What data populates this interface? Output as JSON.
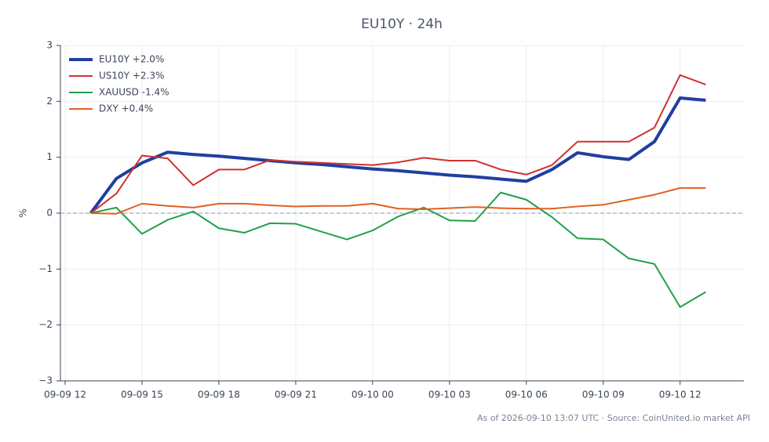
{
  "chart_data": {
    "type": "line",
    "title": "EU10Y · 24h",
    "y_label": "%",
    "footer": "As of 2026-09-10 13:07 UTC · Source: CoinUnited.io market API",
    "x": [
      "09-09 13",
      "09-09 14",
      "09-09 15",
      "09-09 16",
      "09-09 17",
      "09-09 18",
      "09-09 19",
      "09-09 20",
      "09-09 21",
      "09-09 22",
      "09-09 23",
      "09-10 00",
      "09-10 01",
      "09-10 02",
      "09-10 03",
      "09-10 04",
      "09-10 05",
      "09-10 06",
      "09-10 07",
      "09-10 08",
      "09-10 09",
      "09-10 10",
      "09-10 11",
      "09-10 12",
      "09-10 13"
    ],
    "xlim": [
      "09-09 12",
      "09-10 14"
    ],
    "xticks": [
      "09-09 12",
      "09-09 15",
      "09-09 18",
      "09-09 21",
      "09-10 00",
      "09-10 03",
      "09-10 06",
      "09-10 09",
      "09-10 12"
    ],
    "ylim": [
      -3,
      3
    ],
    "yticks": [
      {
        "value": -3,
        "label": "−3"
      },
      {
        "value": -2,
        "label": "−2"
      },
      {
        "value": -1,
        "label": "−1"
      },
      0,
      1,
      2,
      3
    ],
    "grid": true,
    "zero_line": 0,
    "legend": "upper-left",
    "series": [
      {
        "name": "EU10Y +2.0%",
        "color": "#1f3fa0",
        "width": 4,
        "values": [
          0,
          0.62,
          0.9,
          1.09,
          1.05,
          1.02,
          0.98,
          0.94,
          0.9,
          0.87,
          0.83,
          0.79,
          0.76,
          0.72,
          0.68,
          0.65,
          0.61,
          0.57,
          0.78,
          1.08,
          1.01,
          0.96,
          1.28,
          2.06,
          2.02
        ]
      },
      {
        "name": "US10Y +2.3%",
        "color": "#d03030",
        "width": 2,
        "values": [
          0,
          0.35,
          1.03,
          0.98,
          0.5,
          0.78,
          0.78,
          0.95,
          0.92,
          0.9,
          0.88,
          0.86,
          0.91,
          0.99,
          0.94,
          0.94,
          0.78,
          0.69,
          0.86,
          1.28,
          1.28,
          1.28,
          1.53,
          2.47,
          2.3
        ]
      },
      {
        "name": "XAUUSD -1.4%",
        "color": "#22a04a",
        "width": 2,
        "values": [
          0,
          0.1,
          -0.37,
          -0.12,
          0.03,
          -0.27,
          -0.35,
          -0.18,
          -0.19,
          -0.33,
          -0.47,
          -0.31,
          -0.06,
          0.1,
          -0.13,
          -0.14,
          0.37,
          0.24,
          -0.07,
          -0.45,
          -0.47,
          -0.81,
          -0.91,
          -1.68,
          -1.41
        ]
      },
      {
        "name": "DXY +0.4%",
        "color": "#e06020",
        "width": 2,
        "values": [
          0,
          -0.01,
          0.17,
          0.13,
          0.1,
          0.17,
          0.17,
          0.14,
          0.12,
          0.13,
          0.13,
          0.17,
          0.08,
          0.07,
          0.09,
          0.11,
          0.09,
          0.08,
          0.08,
          0.12,
          0.15,
          0.24,
          0.33,
          0.45,
          0.45
        ]
      }
    ]
  }
}
